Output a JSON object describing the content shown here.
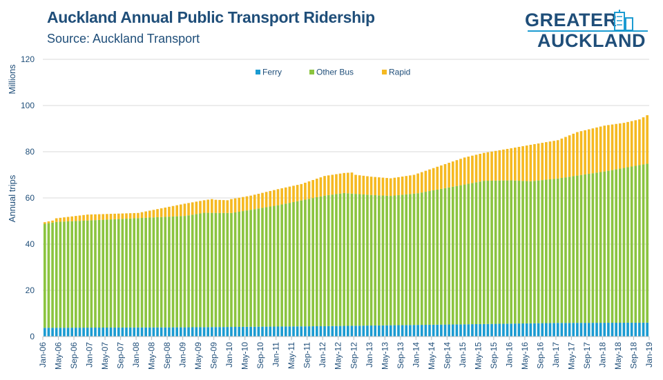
{
  "title": "Auckland Annual Public Transport Ridership",
  "subtitle": "Source: Auckland Transport",
  "logo": {
    "line1": "GREATER",
    "line2": "AUCKLAND"
  },
  "colors": {
    "ferry": "#1b9bd1",
    "other_bus": "#8bc43f",
    "rapid": "#f5b921",
    "axis_text": "#1f4e79",
    "grid": "#d9d9d9"
  },
  "chart_data": {
    "type": "bar",
    "stacked": true,
    "ylabel": "Annual trips",
    "yunit": "Millions",
    "ylim": [
      0,
      120
    ],
    "yticks": [
      0,
      20,
      40,
      60,
      80,
      100,
      120
    ],
    "grid": true,
    "legend_position": "top-center",
    "x_start": "Jan-06",
    "x_ticks": [
      "Jan-06",
      "May-06",
      "Sep-06",
      "Jan-07",
      "May-07",
      "Sep-07",
      "Jan-08",
      "May-08",
      "Sep-08",
      "Jan-09",
      "May-09",
      "Sep-09",
      "Jan-10",
      "May-10",
      "Sep-10",
      "Jan-11",
      "May-11",
      "Sep-11",
      "Jan-12",
      "May-12",
      "Sep-12",
      "Jan-13",
      "May-13",
      "Sep-13",
      "Jan-14",
      "May-14",
      "Sep-14",
      "Jan-15",
      "May-15",
      "Sep-15",
      "Jan-16",
      "May-16",
      "Sep-16",
      "Jan-17",
      "May-17",
      "Sep-17",
      "Jan-18",
      "May-18",
      "Sep-18",
      "Jan-19"
    ],
    "total_anchors": [
      [
        "Jan-06",
        49.5
      ],
      [
        "Mar-06",
        50.2
      ],
      [
        "Apr-06",
        51.2
      ],
      [
        "Dec-06",
        52.8
      ],
      [
        "Apr-07",
        53.0
      ],
      [
        "Jan-08",
        53.5
      ],
      [
        "Jul-08",
        55.5
      ],
      [
        "Jan-09",
        57.5
      ],
      [
        "Jun-09",
        59.0
      ],
      [
        "Aug-09",
        59.5
      ],
      [
        "Sep-09",
        59.2
      ],
      [
        "Dec-09",
        59.0
      ],
      [
        "Jan-10",
        59.5
      ],
      [
        "Jun-10",
        61.0
      ],
      [
        "Jan-11",
        63.8
      ],
      [
        "Jul-11",
        66.0
      ],
      [
        "Jan-12",
        69.5
      ],
      [
        "Jun-12",
        70.8
      ],
      [
        "Aug-12",
        71.0
      ],
      [
        "Sep-12",
        70.0
      ],
      [
        "Jan-13",
        69.2
      ],
      [
        "Jun-13",
        68.5
      ],
      [
        "Dec-13",
        70.0
      ],
      [
        "Jun-14",
        73.5
      ],
      [
        "Jan-15",
        77.5
      ],
      [
        "Jun-15",
        79.5
      ],
      [
        "Jan-16",
        81.5
      ],
      [
        "Jun-16",
        83.0
      ],
      [
        "Jan-17",
        85.0
      ],
      [
        "Jun-17",
        88.5
      ],
      [
        "Jan-18",
        91.3
      ],
      [
        "Jun-18",
        92.5
      ],
      [
        "Oct-18",
        94.0
      ],
      [
        "Dec-18",
        95.8
      ]
    ],
    "series": [
      {
        "name": "Ferry",
        "anchors": [
          [
            "Jan-06",
            3.8
          ],
          [
            "Jan-09",
            4.0
          ],
          [
            "Jan-12",
            4.5
          ],
          [
            "Jan-15",
            5.3
          ],
          [
            "Jan-17",
            5.9
          ],
          [
            "Dec-18",
            6.0
          ]
        ]
      },
      {
        "name": "Other Bus",
        "anchors": [
          [
            "Jan-06",
            45.0
          ],
          [
            "Apr-06",
            45.8
          ],
          [
            "Jan-09",
            48.2
          ],
          [
            "Jun-09",
            49.5
          ],
          [
            "Jan-10",
            49.3
          ],
          [
            "Jan-11",
            52.5
          ],
          [
            "Jan-12",
            56.5
          ],
          [
            "Jun-12",
            57.5
          ],
          [
            "Jan-13",
            56.5
          ],
          [
            "Jun-13",
            56.0
          ],
          [
            "Jan-14",
            57.0
          ],
          [
            "Jan-15",
            60.5
          ],
          [
            "Jun-15",
            62.0
          ],
          [
            "Jan-16",
            62.0
          ],
          [
            "Jun-16",
            61.5
          ],
          [
            "Jan-17",
            62.5
          ],
          [
            "Jan-18",
            65.5
          ],
          [
            "Dec-18",
            68.8
          ]
        ]
      },
      {
        "name": "Rapid",
        "derived_from": "total"
      }
    ]
  }
}
